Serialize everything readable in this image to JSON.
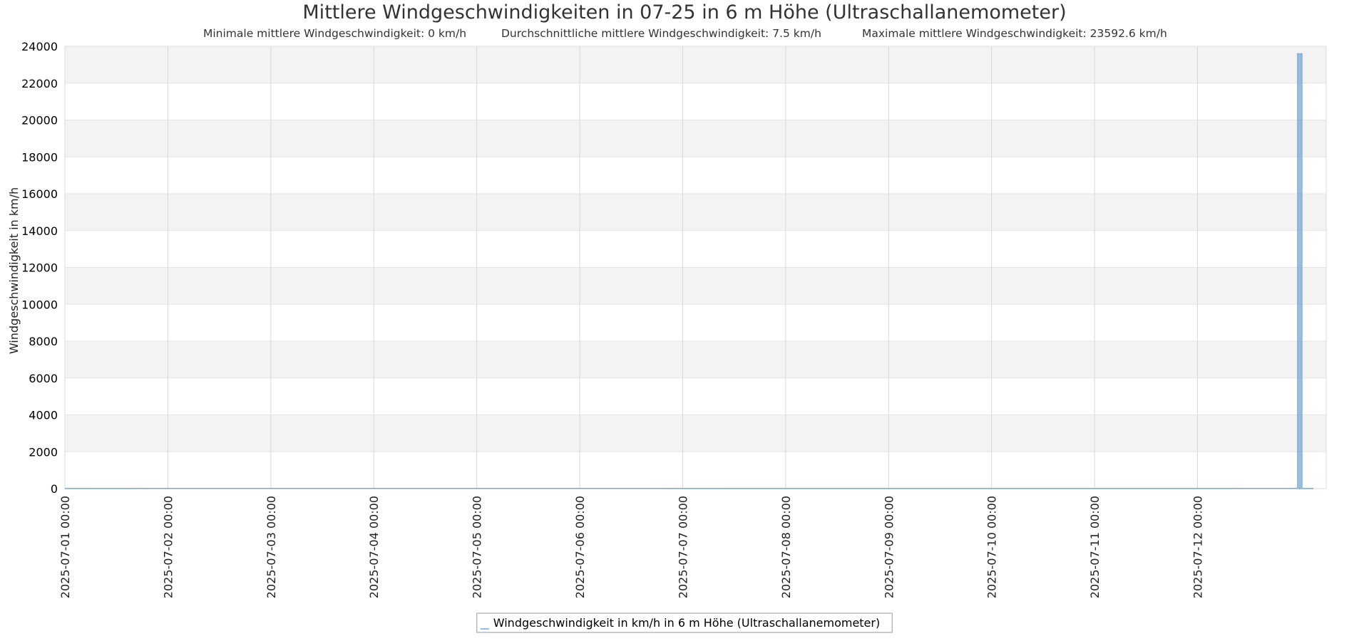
{
  "chart_data": {
    "type": "line",
    "title": "Mittlere Windgeschwindigkeiten in 07-25 in 6 m Höhe (Ultraschallanemometer)",
    "subtitles": [
      "Minimale mittlere Windgeschwindigkeit: 0 km/h",
      "Durchschnittliche mittlere Windgeschwindigkeit: 7.5 km/h",
      "Maximale mittlere Windgeschwindigkeit: 23592.6 km/h"
    ],
    "ylabel": "Windgeschwindigkeit in km/h",
    "ylim": [
      0,
      24000
    ],
    "yticks": [
      "0",
      "2000",
      "4000",
      "6000",
      "8000",
      "10000",
      "12000",
      "14000",
      "16000",
      "18000",
      "20000",
      "22000",
      "24000"
    ],
    "xlim": [
      "2025-07-01 00:00",
      "2025-07-13 06:00"
    ],
    "xticks": [
      "2025-07-01 00:00",
      "2025-07-02 00:00",
      "2025-07-03 00:00",
      "2025-07-04 00:00",
      "2025-07-05 00:00",
      "2025-07-06 00:00",
      "2025-07-07 00:00",
      "2025-07-08 00:00",
      "2025-07-09 00:00",
      "2025-07-10 00:00",
      "2025-07-11 00:00",
      "2025-07-12 00:00"
    ],
    "grid": true,
    "legend_position": "bottom-center",
    "colors": {
      "series": "#6fa8dc",
      "band": "#f3f3f3",
      "grid": "#d8d8d8",
      "legend_border": "#999999"
    },
    "series": [
      {
        "name": "Windgeschwindigkeit in km/h in 6 m Höhe (Ultraschallanemometer)",
        "x": [
          "2025-07-01 00:00",
          "2025-07-05 00:00",
          "2025-07-09 00:00",
          "2025-07-12 00:00",
          "2025-07-12 23:00",
          "2025-07-12 23:20",
          "2025-07-12 23:20",
          "2025-07-12 23:40",
          "2025-07-12 23:40",
          "2025-07-13 00:00",
          "2025-07-13 00:00",
          "2025-07-13 00:20",
          "2025-07-13 00:20",
          "2025-07-13 03:00"
        ],
        "values": [
          7,
          8,
          6,
          7,
          8,
          8,
          23592.6,
          23592.6,
          0,
          0,
          23592.6,
          23592.6,
          5,
          6
        ]
      }
    ]
  }
}
